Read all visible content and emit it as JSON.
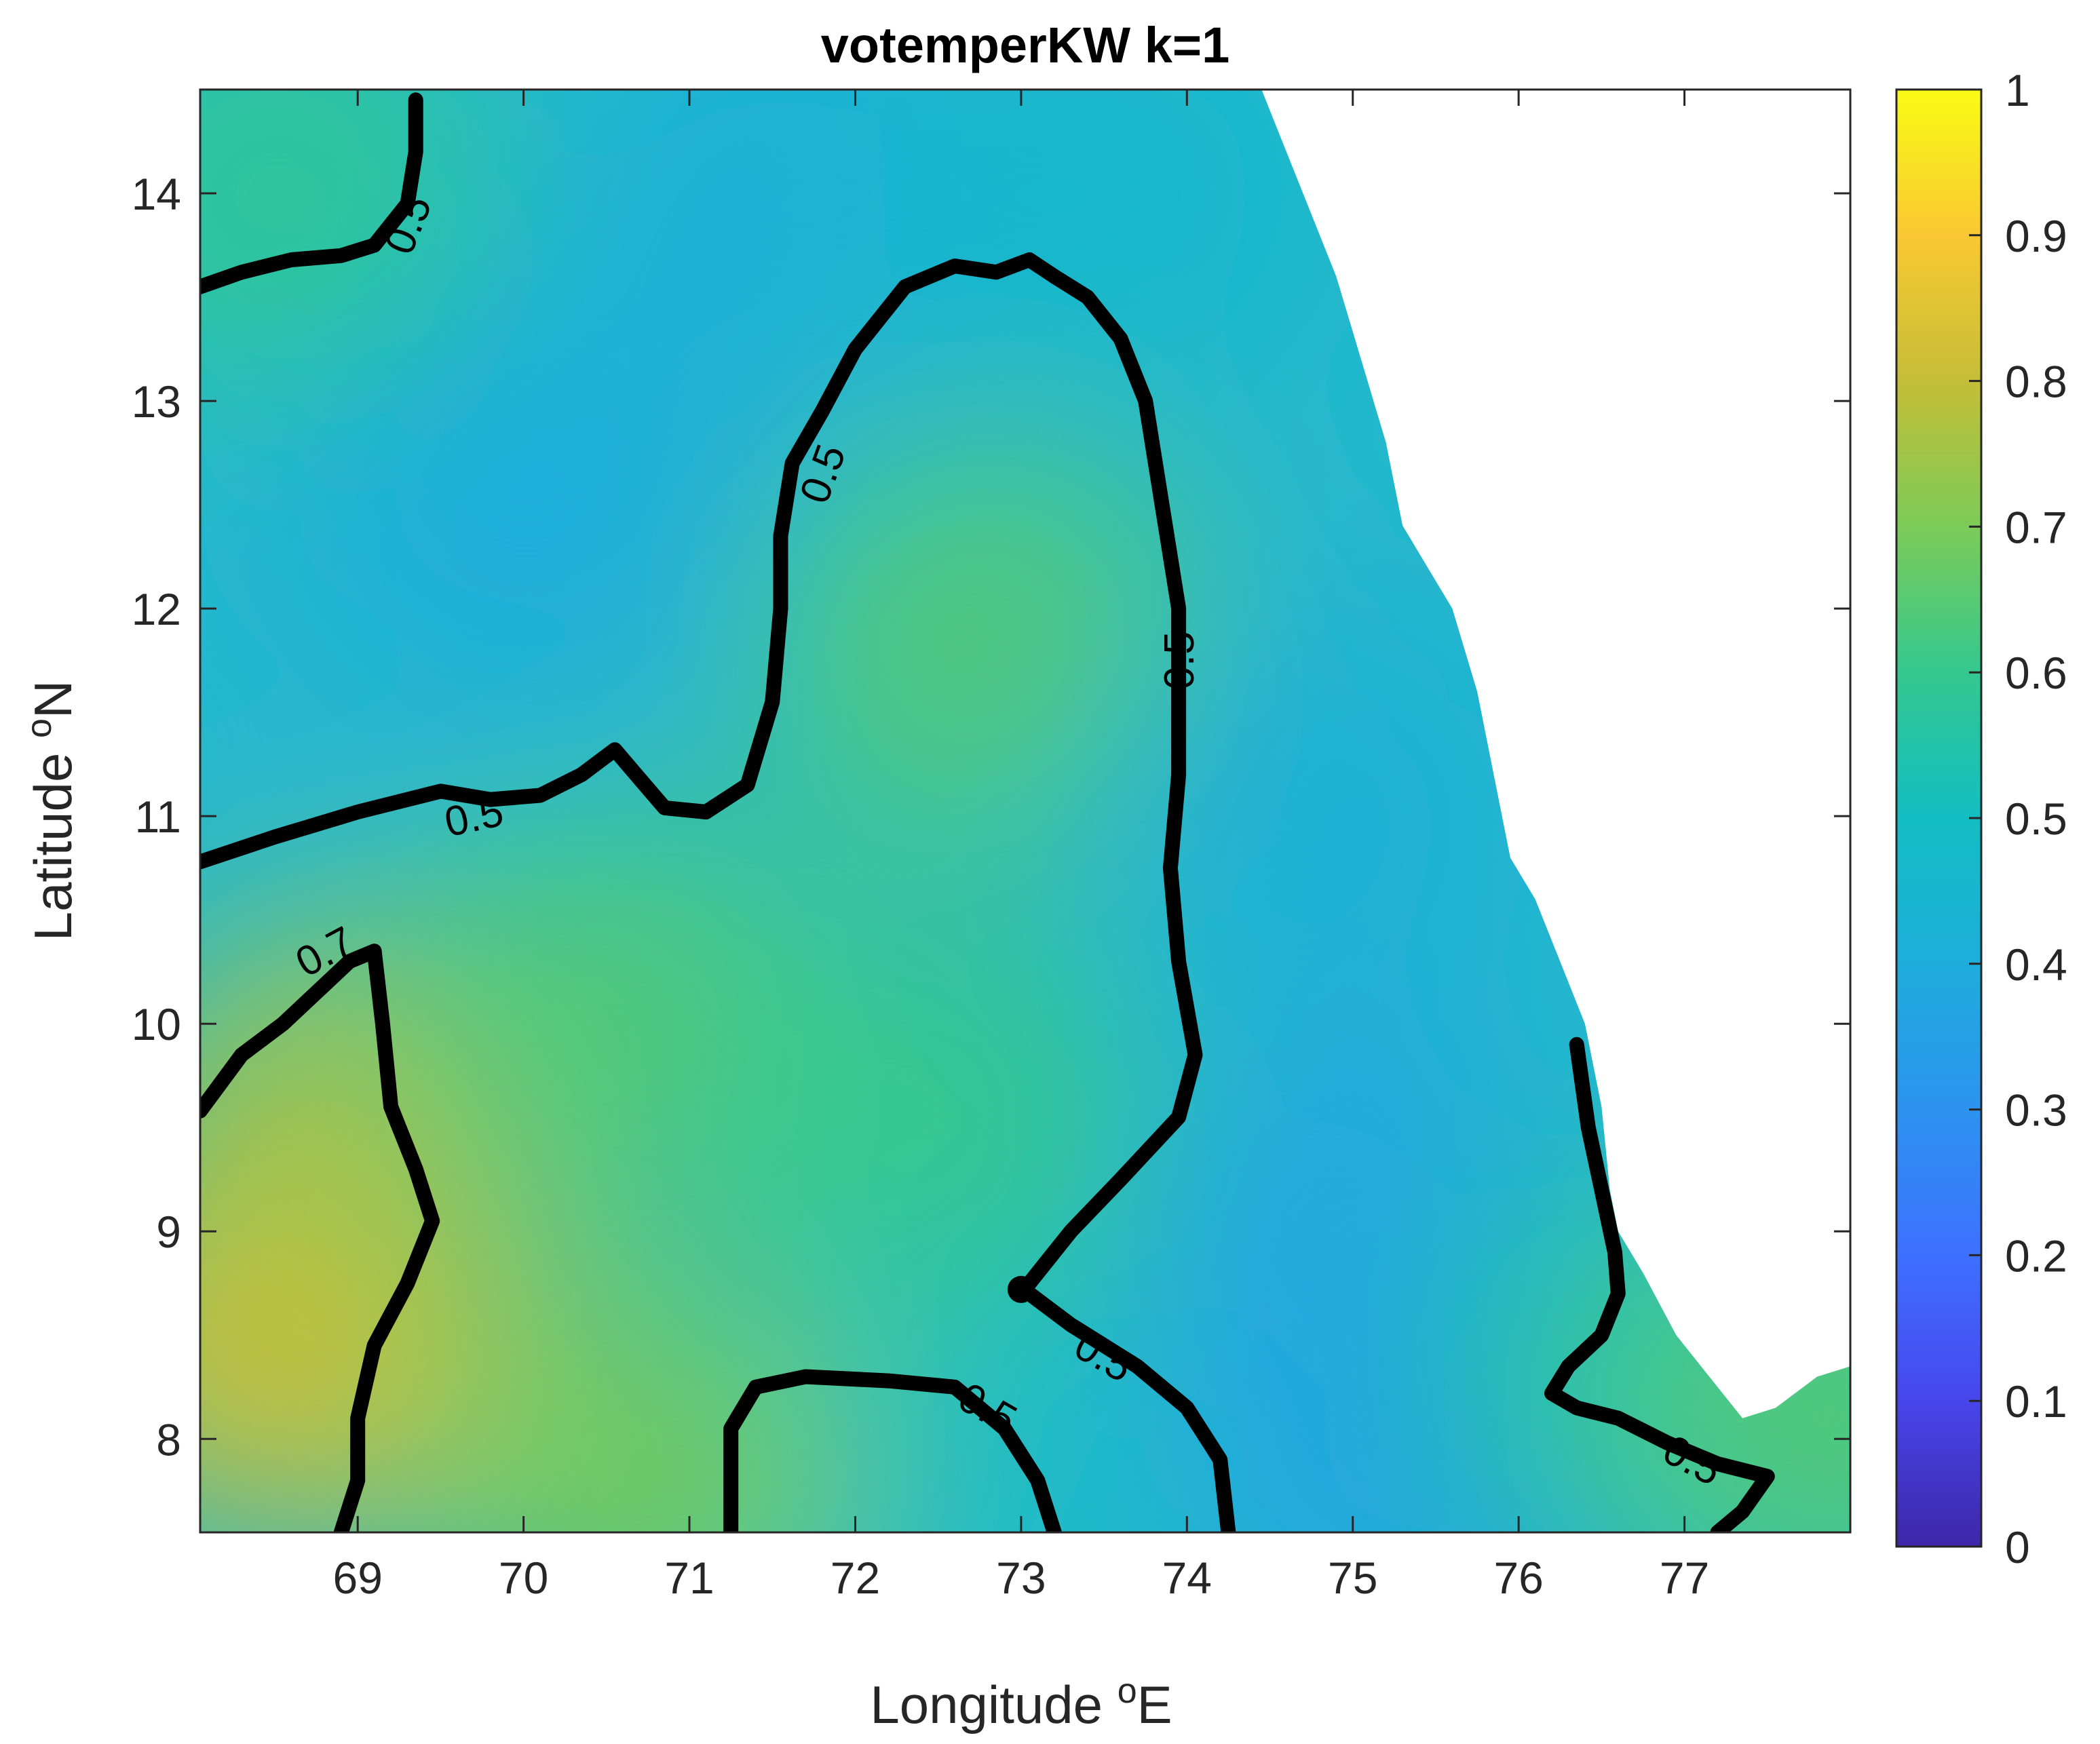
{
  "chart_data": {
    "type": "heatmap",
    "title": "votemperKW k=1",
    "xlabel": {
      "prefix": "Longitude ",
      "sup": "o",
      "suffix": "E"
    },
    "ylabel": {
      "prefix": "Latitude ",
      "sup": "o",
      "suffix": "N"
    },
    "xlim": [
      68.05,
      78.0
    ],
    "ylim": [
      7.55,
      14.5
    ],
    "x_ticks": [
      69,
      70,
      71,
      72,
      73,
      74,
      75,
      76,
      77
    ],
    "y_ticks": [
      8,
      9,
      10,
      11,
      12,
      13,
      14
    ],
    "colorbar": {
      "range": [
        0,
        1
      ],
      "ticks": [
        0,
        0.1,
        0.2,
        0.3,
        0.4,
        0.5,
        0.6,
        0.7,
        0.8,
        0.9,
        1
      ],
      "tick_labels": [
        "0",
        "0.1",
        "0.2",
        "0.3",
        "0.4",
        "0.5",
        "0.6",
        "0.7",
        "0.8",
        "0.9",
        "1"
      ],
      "colormap": "parula",
      "colormap_stops": [
        "#3e26a8",
        "#4746eb",
        "#3e70ff",
        "#2c93f0",
        "#1ead db",
        "#12bec2",
        "#34c88f",
        "#7ccb58",
        "#c5be37",
        "#f9c832",
        "#f9fb15"
      ]
    },
    "field_description_points": [
      {
        "lon": 68.5,
        "lat": 8.5,
        "value": 0.82
      },
      {
        "lon": 69.0,
        "lat": 9.5,
        "value": 0.76
      },
      {
        "lon": 70.5,
        "lat": 10.0,
        "value": 0.64
      },
      {
        "lon": 72.8,
        "lat": 11.8,
        "value": 0.64
      },
      {
        "lon": 72.5,
        "lat": 9.5,
        "value": 0.6
      },
      {
        "lon": 70.0,
        "lat": 12.5,
        "value": 0.4
      },
      {
        "lon": 71.5,
        "lat": 14.0,
        "value": 0.42
      },
      {
        "lon": 68.5,
        "lat": 14.0,
        "value": 0.58
      },
      {
        "lon": 73.5,
        "lat": 14.0,
        "value": 0.46
      },
      {
        "lon": 74.8,
        "lat": 11.0,
        "value": 0.42
      },
      {
        "lon": 75.0,
        "lat": 9.0,
        "value": 0.38
      },
      {
        "lon": 75.5,
        "lat": 7.9,
        "value": 0.36
      },
      {
        "lon": 76.8,
        "lat": 8.3,
        "value": 0.55
      },
      {
        "lon": 77.9,
        "lat": 8.1,
        "value": 0.64
      },
      {
        "lon": 72.0,
        "lat": 7.8,
        "value": 0.5
      },
      {
        "lon": 70.7,
        "lat": 7.8,
        "value": 0.68
      }
    ],
    "contours": [
      {
        "level": 0.5,
        "label": "0.5",
        "points": [
          [
            68.05,
            13.55
          ],
          [
            68.3,
            13.62
          ],
          [
            68.6,
            13.68
          ],
          [
            68.9,
            13.7
          ],
          [
            69.1,
            13.75
          ],
          [
            69.3,
            13.95
          ],
          [
            69.35,
            14.2
          ],
          [
            69.35,
            14.45
          ]
        ]
      },
      {
        "level": 0.5,
        "label": "0.5",
        "points": [
          [
            68.05,
            10.78
          ],
          [
            68.5,
            10.9
          ],
          [
            69.0,
            11.02
          ],
          [
            69.5,
            11.12
          ],
          [
            69.8,
            11.08
          ],
          [
            70.1,
            11.1
          ],
          [
            70.35,
            11.2
          ],
          [
            70.55,
            11.32
          ],
          [
            70.7,
            11.18
          ],
          [
            70.85,
            11.04
          ],
          [
            71.1,
            11.02
          ],
          [
            71.35,
            11.15
          ],
          [
            71.5,
            11.55
          ],
          [
            71.55,
            12.0
          ],
          [
            71.55,
            12.35
          ],
          [
            71.62,
            12.7
          ],
          [
            71.8,
            12.95
          ],
          [
            72.0,
            13.25
          ],
          [
            72.3,
            13.55
          ],
          [
            72.6,
            13.65
          ],
          [
            72.85,
            13.62
          ],
          [
            73.05,
            13.68
          ],
          [
            73.2,
            13.6
          ],
          [
            73.4,
            13.5
          ],
          [
            73.6,
            13.3
          ],
          [
            73.75,
            13.0
          ],
          [
            73.85,
            12.5
          ],
          [
            73.95,
            12.0
          ],
          [
            73.95,
            11.6
          ],
          [
            73.95,
            11.2
          ],
          [
            73.9,
            10.75
          ],
          [
            73.95,
            10.3
          ],
          [
            74.05,
            9.85
          ],
          [
            73.95,
            9.55
          ],
          [
            73.6,
            9.25
          ],
          [
            73.3,
            9.0
          ],
          [
            73.05,
            8.75
          ]
        ]
      },
      {
        "level": 0.5,
        "label": "0.5",
        "points": [
          [
            71.25,
            7.55
          ],
          [
            71.25,
            8.05
          ],
          [
            71.4,
            8.25
          ],
          [
            71.7,
            8.3
          ],
          [
            72.2,
            8.28
          ],
          [
            72.6,
            8.25
          ],
          [
            72.9,
            8.05
          ],
          [
            73.1,
            7.8
          ],
          [
            73.2,
            7.55
          ]
        ]
      },
      {
        "level": 0.5,
        "label": "0.5",
        "points": [
          [
            73.05,
            8.7
          ],
          [
            73.3,
            8.55
          ],
          [
            73.7,
            8.35
          ],
          [
            74.0,
            8.15
          ],
          [
            74.2,
            7.9
          ],
          [
            74.25,
            7.55
          ]
        ]
      },
      {
        "level": 0.5,
        "label": "0.5",
        "points": [
          [
            76.35,
            9.9
          ],
          [
            76.42,
            9.5
          ],
          [
            76.5,
            9.2
          ],
          [
            76.58,
            8.9
          ],
          [
            76.6,
            8.7
          ],
          [
            76.5,
            8.5
          ],
          [
            76.3,
            8.35
          ],
          [
            76.2,
            8.22
          ],
          [
            76.35,
            8.15
          ],
          [
            76.6,
            8.1
          ],
          [
            76.9,
            7.98
          ],
          [
            77.2,
            7.88
          ],
          [
            77.5,
            7.82
          ],
          [
            77.35,
            7.65
          ],
          [
            77.2,
            7.55
          ]
        ]
      },
      {
        "level": 0.7,
        "label": "0.7",
        "points": [
          [
            68.05,
            9.58
          ],
          [
            68.3,
            9.85
          ],
          [
            68.55,
            10.0
          ],
          [
            68.75,
            10.15
          ],
          [
            68.95,
            10.3
          ],
          [
            69.1,
            10.35
          ],
          [
            69.15,
            10.0
          ],
          [
            69.2,
            9.6
          ],
          [
            69.35,
            9.3
          ],
          [
            69.45,
            9.05
          ],
          [
            69.3,
            8.75
          ],
          [
            69.1,
            8.45
          ],
          [
            69.0,
            8.1
          ],
          [
            69.0,
            7.8
          ],
          [
            68.9,
            7.55
          ]
        ]
      }
    ],
    "contour_label_positions": [
      {
        "lon": 69.3,
        "lat": 13.85,
        "angle": -68
      },
      {
        "lon": 69.7,
        "lat": 11.0,
        "angle": -12
      },
      {
        "lon": 71.8,
        "lat": 12.65,
        "angle": -70
      },
      {
        "lon": 73.95,
        "lat": 11.75,
        "angle": -90
      },
      {
        "lon": 72.8,
        "lat": 8.15,
        "angle": 30
      },
      {
        "lon": 73.5,
        "lat": 8.4,
        "angle": 30
      },
      {
        "lon": 77.05,
        "lat": 7.9,
        "angle": 28
      },
      {
        "lon": 68.8,
        "lat": 10.35,
        "angle": -28
      }
    ],
    "land_mask_edge": [
      [
        74.45,
        14.5
      ],
      [
        74.55,
        14.3
      ],
      [
        74.7,
        14.0
      ],
      [
        74.9,
        13.6
      ],
      [
        75.05,
        13.2
      ],
      [
        75.2,
        12.8
      ],
      [
        75.3,
        12.4
      ],
      [
        75.45,
        12.2
      ],
      [
        75.6,
        12.0
      ],
      [
        75.75,
        11.6
      ],
      [
        75.85,
        11.2
      ],
      [
        75.95,
        10.8
      ],
      [
        76.1,
        10.6
      ],
      [
        76.25,
        10.3
      ],
      [
        76.4,
        10.0
      ],
      [
        76.5,
        9.6
      ],
      [
        76.55,
        9.2
      ],
      [
        76.6,
        9.0
      ],
      [
        76.75,
        8.8
      ],
      [
        76.95,
        8.5
      ],
      [
        77.15,
        8.3
      ],
      [
        77.35,
        8.1
      ],
      [
        77.55,
        8.15
      ],
      [
        77.8,
        8.3
      ],
      [
        78.0,
        8.35
      ]
    ],
    "grid": false,
    "colors": {
      "contour": "#000000",
      "land": "#ffffff",
      "axes": "#262626"
    }
  }
}
